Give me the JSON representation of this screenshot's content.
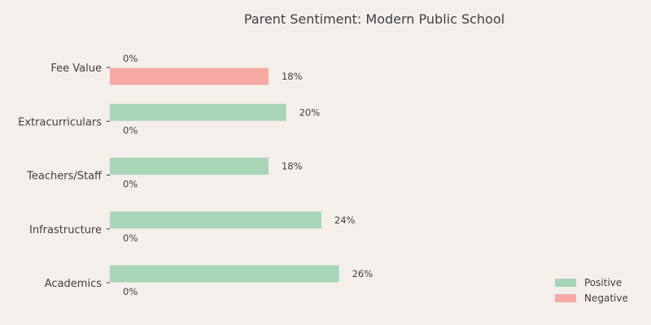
{
  "chart_data": {
    "type": "bar",
    "orientation": "horizontal",
    "title": "Parent Sentiment: Modern Public School",
    "xlabel": "",
    "ylabel": "",
    "categories": [
      "Academics",
      "Infrastructure",
      "Teachers/Staff",
      "Extracurriculars",
      "Fee Value"
    ],
    "series": [
      {
        "name": "Positive",
        "values": [
          26,
          24,
          18,
          20,
          0
        ],
        "color": "#a8d5b8"
      },
      {
        "name": "Negative",
        "values": [
          0,
          0,
          0,
          0,
          18
        ],
        "color": "#f6a8a2"
      }
    ],
    "value_suffix": "%",
    "xlim": [
      0,
      60
    ],
    "grid": false,
    "legend_position": "bottom-right"
  }
}
